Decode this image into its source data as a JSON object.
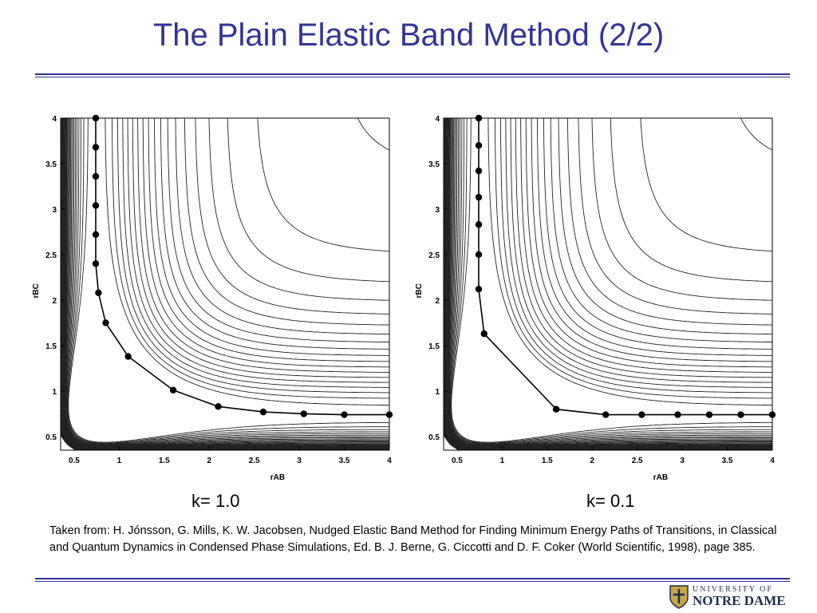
{
  "title": "The Plain Elastic Band Method (2/2)",
  "citation": "Taken from: H. Jónsson, G. Mills, K. W. Jacobsen, Nudged Elastic Band Method for Finding Minimum Energy Paths of Transitions, in Classical and Quantum Dynamics in Condensed Phase Simulations, Ed. B. J. Berne, G. Ciccotti and D. F. Coker (World Scientific, 1998), page 385.",
  "logo": {
    "line1": "UNIVERSITY OF",
    "line2": "NOTRE DAME",
    "icon": "university-seal-icon"
  },
  "colors": {
    "title": "#333399",
    "rule": "#333399"
  },
  "chart_data": [
    {
      "type": "contour",
      "caption": "k= 1.0",
      "xlabel": "rAB",
      "ylabel": "rBC",
      "xlim": [
        0.35,
        4.0
      ],
      "ylim": [
        0.35,
        4.0
      ],
      "xticks": [
        0.5,
        1,
        1.5,
        2,
        2.5,
        3,
        3.5,
        4
      ],
      "xtick_labels": [
        "0.5",
        "1",
        "1.5",
        "2",
        "2.5",
        "3",
        "3.5",
        "4"
      ],
      "yticks": [
        0.5,
        1,
        1.5,
        2,
        2.5,
        3,
        3.5,
        4
      ],
      "ytick_labels": [
        "0.5",
        "1",
        "1.5",
        "2",
        "2.5",
        "3",
        "3.5",
        "4"
      ],
      "grid": false,
      "band_path": {
        "x": [
          0.74,
          0.74,
          0.74,
          0.74,
          0.74,
          0.74,
          0.77,
          0.85,
          1.1,
          1.6,
          2.1,
          2.6,
          3.05,
          3.5,
          4.0
        ],
        "y": [
          4.0,
          3.68,
          3.36,
          3.04,
          2.72,
          2.4,
          2.08,
          1.75,
          1.38,
          1.01,
          0.83,
          0.77,
          0.75,
          0.74,
          0.74
        ]
      }
    },
    {
      "type": "contour",
      "caption": "k= 0.1",
      "xlabel": "rAB",
      "ylabel": "rBC",
      "xlim": [
        0.35,
        4.0
      ],
      "ylim": [
        0.35,
        4.0
      ],
      "xticks": [
        0.5,
        1,
        1.5,
        2,
        2.5,
        3,
        3.5,
        4
      ],
      "xtick_labels": [
        "0.5",
        "1",
        "1.5",
        "2",
        "2.5",
        "3",
        "3.5",
        "4"
      ],
      "yticks": [
        0.5,
        1,
        1.5,
        2,
        2.5,
        3,
        3.5,
        4
      ],
      "ytick_labels": [
        "0.5",
        "1",
        "1.5",
        "2",
        "2.5",
        "3",
        "3.5",
        "4"
      ],
      "grid": false,
      "band_path": {
        "x": [
          0.74,
          0.74,
          0.74,
          0.74,
          0.74,
          0.74,
          0.74,
          0.8,
          1.6,
          2.15,
          2.55,
          2.95,
          3.3,
          3.65,
          4.0
        ],
        "y": [
          4.0,
          3.7,
          3.42,
          3.13,
          2.83,
          2.5,
          2.12,
          1.63,
          0.8,
          0.74,
          0.74,
          0.74,
          0.74,
          0.74,
          0.74
        ]
      }
    }
  ]
}
